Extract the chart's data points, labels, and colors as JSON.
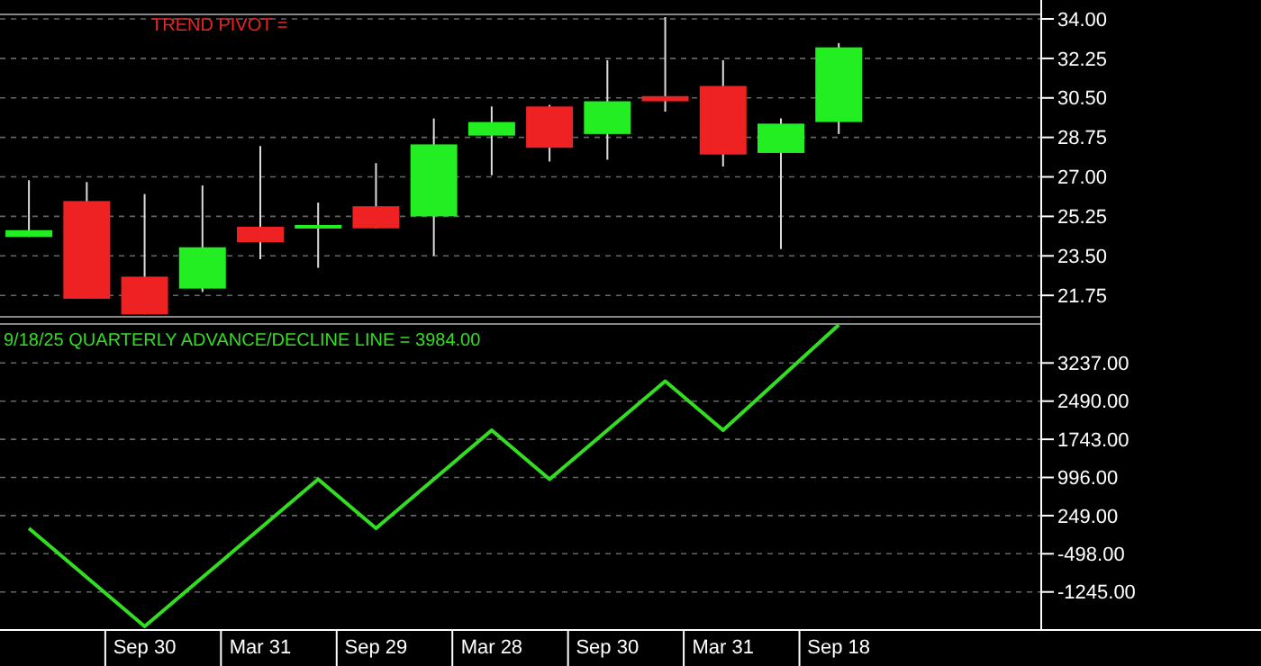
{
  "chart_data": [
    {
      "type": "candlestick",
      "annotations": [
        "TREND PIVOT ="
      ],
      "categories": [
        null,
        null,
        null,
        null,
        null,
        null,
        null,
        null,
        null,
        null,
        null,
        null,
        null,
        null,
        null,
        null,
        null,
        null
      ],
      "ohlc": [
        [
          24.34,
          26.85,
          24.34,
          24.64
        ],
        [
          25.93,
          26.77,
          21.6,
          21.6
        ],
        [
          22.58,
          26.24,
          20.91,
          20.91
        ],
        [
          22.05,
          26.62,
          21.9,
          23.88
        ],
        [
          24.79,
          28.37,
          23.35,
          24.11
        ],
        [
          24.83,
          25.86,
          22.97,
          24.87
        ],
        [
          25.7,
          27.61,
          24.72,
          24.72
        ],
        [
          25.25,
          29.59,
          23.5,
          28.44
        ],
        [
          28.83,
          30.12,
          27.07,
          29.43
        ],
        [
          30.12,
          30.19,
          27.68,
          28.29
        ],
        [
          28.9,
          32.17,
          27.76,
          30.35
        ],
        [
          30.58,
          34.08,
          29.89,
          30.35
        ],
        [
          31.03,
          32.17,
          27.46,
          27.99
        ],
        [
          28.06,
          29.59,
          23.8,
          29.36
        ],
        [
          29.43,
          32.93,
          28.9,
          32.74
        ],
        null,
        null,
        null
      ],
      "ylim": [
        20.8,
        34.2
      ],
      "yticks": [
        {
          "value": 34,
          "label": "34.00"
        },
        {
          "value": 32.25,
          "label": "32.25"
        },
        {
          "value": 30.5,
          "label": "30.50"
        },
        {
          "value": 28.75,
          "label": "28.75"
        },
        {
          "value": 27,
          "label": "27.00"
        },
        {
          "value": 25.25,
          "label": "25.25"
        },
        {
          "value": 23.5,
          "label": "23.50"
        },
        {
          "value": 21.75,
          "label": "21.75"
        }
      ],
      "grid": "y",
      "tick_labels": "y"
    },
    {
      "type": "line",
      "title": "9/18/25  QUARTERLY ADVANCE/DECLINE LINE = 3984.00",
      "categories": [
        null,
        null,
        "Sep 30",
        null,
        "Mar 31",
        null,
        "Sep 29",
        null,
        "Mar 28",
        null,
        "Sep 30",
        null,
        "Mar 31",
        null,
        "Sep 18",
        null,
        null,
        null
      ],
      "series": [
        {
          "color": "#33dd22",
          "values": [
            0,
            -960,
            -1920,
            -960,
            0,
            960,
            0,
            960,
            1920,
            960,
            1920,
            2880,
            1920,
            2950,
            3984,
            null,
            null,
            null
          ]
        }
      ],
      "ylim": [
        -1990,
        4000
      ],
      "yticks": [
        {
          "value": 3237,
          "label": "3237.00"
        },
        {
          "value": 2490,
          "label": "2490.00"
        },
        {
          "value": 1743,
          "label": "1743.00"
        },
        {
          "value": 996,
          "label": "996.00"
        },
        {
          "value": 249,
          "label": "249.00"
        },
        {
          "value": -498,
          "label": "-498.00"
        },
        {
          "value": -1245,
          "label": "-1245.00"
        }
      ],
      "grid": "y",
      "marker": "none",
      "line_style": "solid"
    }
  ]
}
